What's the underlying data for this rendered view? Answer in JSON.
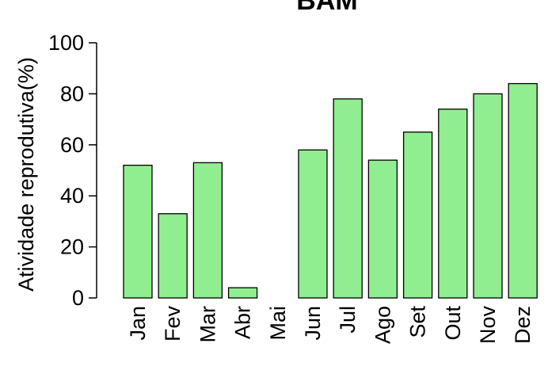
{
  "chart_data": {
    "type": "bar",
    "title": "BAM",
    "xlabel": "",
    "ylabel": "Atividade reprodutiva(%)",
    "categories": [
      "Jan",
      "Fev",
      "Mar",
      "Abr",
      "Mai",
      "Jun",
      "Jul",
      "Ago",
      "Set",
      "Out",
      "Nov",
      "Dez"
    ],
    "values": [
      52,
      33,
      53,
      4,
      0,
      58,
      78,
      54,
      65,
      74,
      80,
      84
    ],
    "ylim": [
      0,
      100
    ],
    "yticks": [
      0,
      20,
      40,
      60,
      80,
      100
    ],
    "grid": false,
    "legend": "none",
    "bar_color": "#90ee90",
    "edge_color": "#000000"
  }
}
